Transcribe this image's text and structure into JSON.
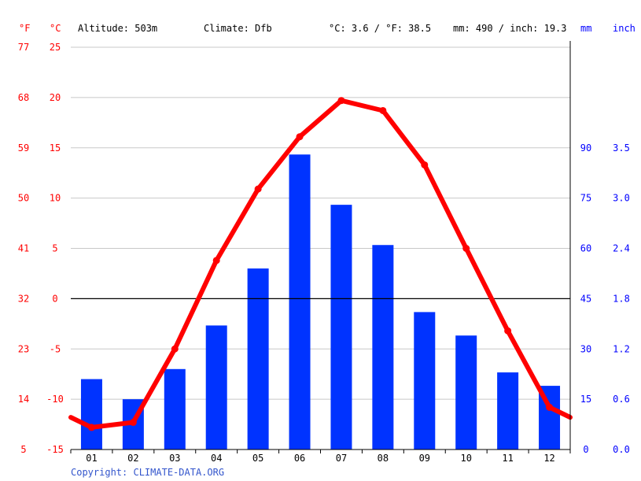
{
  "header": {
    "unit_f": "°F",
    "unit_c": "°C",
    "altitude": "Altitude: 503m",
    "climate": "Climate: Dfb",
    "avg_temp": "°C: 3.6 / °F: 38.5",
    "precip_total": "mm: 490 / inch: 19.3",
    "unit_mm": "mm",
    "unit_inch": "inch"
  },
  "copyright": "Copyright: CLIMATE-DATA.ORG",
  "colors": {
    "temperature": "#ff0000",
    "precipitation": "#0033ff",
    "axis_left": "#ff0000",
    "axis_right": "#0000ff",
    "grid": "#c8c8c8"
  },
  "chart_data": {
    "type": "bar",
    "categories": [
      "01",
      "02",
      "03",
      "04",
      "05",
      "06",
      "07",
      "08",
      "09",
      "10",
      "11",
      "12"
    ],
    "series": [
      {
        "type": "bar",
        "axis": "right",
        "values": [
          21,
          15,
          24,
          37,
          54,
          88,
          73,
          61,
          41,
          34,
          23,
          19
        ]
      },
      {
        "type": "line",
        "axis": "left",
        "values": [
          -12.8,
          -12.3,
          -5.0,
          3.8,
          10.9,
          16.1,
          19.7,
          18.7,
          13.3,
          5.0,
          -3.2,
          -10.8
        ]
      }
    ],
    "y_left_celsius": {
      "ticks": [
        25,
        20,
        15,
        10,
        5,
        0,
        -5,
        -10,
        -15
      ],
      "range": [
        -15,
        25
      ]
    },
    "y_left_fahrenheit": {
      "ticks": [
        77,
        68,
        59,
        50,
        41,
        32,
        23,
        14,
        5
      ]
    },
    "y_right_mm": {
      "ticks": [
        90,
        75,
        60,
        45,
        30,
        15,
        0
      ],
      "range": [
        0,
        90
      ]
    },
    "y_right_inch": {
      "ticks": [
        "3.5",
        "3.0",
        "2.4",
        "1.8",
        "1.2",
        "0.6",
        "0.0"
      ]
    },
    "grid": true,
    "zero_line": true
  }
}
